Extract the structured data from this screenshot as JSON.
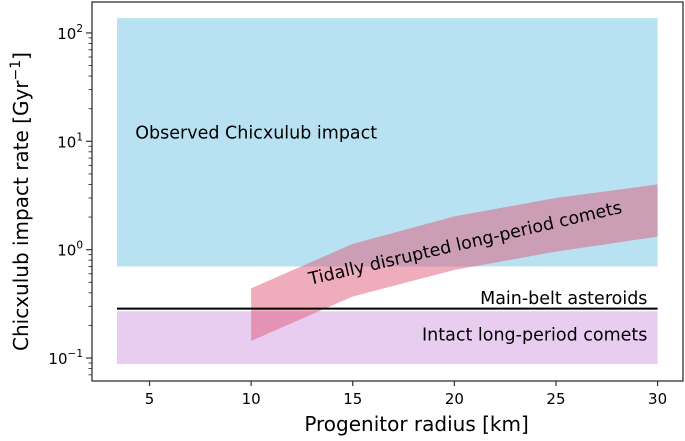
{
  "chart_data": {
    "type": "area",
    "title": "",
    "xlabel": "Progenitor radius  [km]",
    "ylabel_main": "Chicxulub impact rate [Gyr",
    "ylabel_sup": "−1",
    "ylabel_close": "]",
    "xlim": [
      2.17,
      31.25
    ],
    "ylim": [
      0.0614,
      193
    ],
    "yscale": "log",
    "grid": false,
    "xticks": [
      5,
      10,
      15,
      20,
      25,
      30
    ],
    "xtick_labels": [
      "5",
      "10",
      "15",
      "20",
      "25",
      "30"
    ],
    "yticks": [
      0.1,
      1,
      10,
      100
    ],
    "ytick_labels": [
      {
        "base": "10",
        "exp": "−1"
      },
      {
        "base": "10",
        "exp": "0"
      },
      {
        "base": "10",
        "exp": "1"
      },
      {
        "base": "10",
        "exp": "2"
      }
    ],
    "regions": [
      {
        "name": "Observed Chicxulub impact",
        "x": [
          3.4,
          30
        ],
        "y": [
          0.7,
          137
        ],
        "color": "#b8e2f2"
      },
      {
        "name": "Intact long-period comets",
        "x": [
          3.4,
          30
        ],
        "y": [
          0.088,
          0.27
        ],
        "color": "#e8cdf0"
      }
    ],
    "lines": [
      {
        "name": "Main-belt asteroids",
        "x": [
          3.4,
          30
        ],
        "y": 0.286,
        "color": "#000000"
      }
    ],
    "bands": [
      {
        "name": "Tidally disrupted long-period comets",
        "color": "#e05a78",
        "opacity": 0.5,
        "x": [
          10,
          15,
          20,
          25,
          30
        ],
        "upper": [
          0.44,
          1.13,
          2.03,
          3.0,
          4.0
        ],
        "lower": [
          0.144,
          0.37,
          0.65,
          0.96,
          1.32
        ]
      }
    ],
    "annotations": [
      {
        "text": "Observed Chicxulub impact",
        "x": 4.3,
        "y": 10.6,
        "anchor": "start",
        "rotation": 0
      },
      {
        "text": "Main-belt asteroids",
        "x": 29.5,
        "y": 0.315,
        "anchor": "end",
        "rotation": 0
      },
      {
        "text": "Intact long-period comets",
        "x": 29.5,
        "y": 0.145,
        "anchor": "end",
        "rotation": 0
      },
      {
        "text": "Tidally disrupted long-period comets",
        "x": 20.6,
        "y": 1.02,
        "anchor": "middle",
        "rotation": -13
      }
    ]
  }
}
